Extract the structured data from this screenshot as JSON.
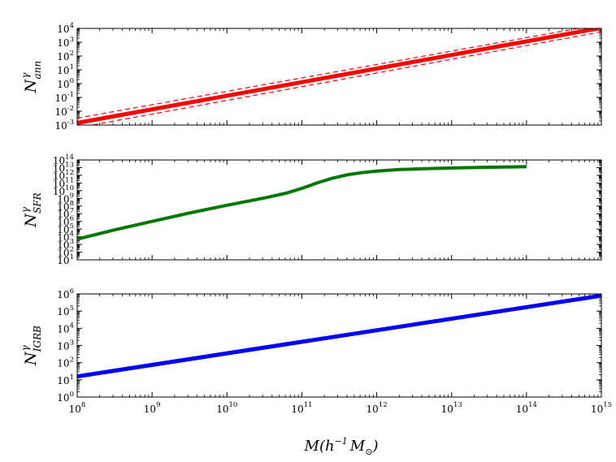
{
  "chart_data": [
    {
      "type": "line",
      "ylabel": {
        "base": "N",
        "sup": "γ",
        "sub": "ann"
      },
      "xscale": "log",
      "yscale": "log",
      "xlim_exp": [
        8,
        15
      ],
      "ylim_exp": [
        -3,
        4
      ],
      "x_tick_exponents": [
        8,
        9,
        10,
        11,
        12,
        13,
        14,
        15
      ],
      "y_tick_exponents": [
        -3,
        -2,
        -1,
        0,
        1,
        2,
        3,
        4
      ],
      "series": [
        {
          "style": "solid",
          "color": "#ff0000",
          "width": 5,
          "x_exp": [
            8,
            15
          ],
          "y_exp": [
            -2.85,
            4.05
          ]
        },
        {
          "style": "dashed",
          "color": "#ff0000",
          "width": 1.2,
          "x_exp": [
            8,
            15
          ],
          "y_exp": [
            -2.5,
            4.3
          ]
        },
        {
          "style": "dashed",
          "color": "#ff0000",
          "width": 1.2,
          "x_exp": [
            8,
            15
          ],
          "y_exp": [
            -3.2,
            3.75
          ]
        }
      ]
    },
    {
      "type": "line",
      "ylabel": {
        "base": "N",
        "sup": "γ",
        "sub": "SFR"
      },
      "xscale": "log",
      "yscale": "log",
      "xlim_exp": [
        8,
        15
      ],
      "ylim_exp": [
        1,
        14
      ],
      "x_tick_exponents": [
        8,
        9,
        10,
        11,
        12,
        13,
        14,
        15
      ],
      "y_tick_exponents": [
        1,
        2,
        3,
        4,
        5,
        6,
        7,
        8,
        9,
        10,
        11,
        12,
        13,
        14
      ],
      "series": [
        {
          "style": "solid",
          "color": "#007700",
          "width": 4,
          "x_exp": [
            8,
            8.5,
            9,
            9.5,
            10,
            10.5,
            10.8,
            11,
            11.2,
            11.4,
            11.6,
            11.8,
            12,
            12.3,
            12.6,
            13,
            13.5,
            14
          ],
          "y_exp": [
            3.7,
            4.9,
            6.0,
            7.1,
            8.1,
            9.05,
            9.7,
            10.3,
            11.0,
            11.6,
            12.05,
            12.35,
            12.55,
            12.75,
            12.85,
            12.95,
            13.05,
            13.12
          ]
        }
      ]
    },
    {
      "type": "line",
      "ylabel": {
        "base": "N",
        "sup": "γ",
        "sub": "IGRB"
      },
      "xscale": "log",
      "yscale": "log",
      "xlim_exp": [
        8,
        15
      ],
      "ylim_exp": [
        0,
        6
      ],
      "x_tick_exponents": [
        8,
        9,
        10,
        11,
        12,
        13,
        14,
        15
      ],
      "y_tick_exponents": [
        0,
        1,
        2,
        3,
        4,
        5,
        6
      ],
      "series": [
        {
          "style": "solid",
          "color": "#0000ff",
          "width": 5,
          "x_exp": [
            8,
            15
          ],
          "y_exp": [
            1.2,
            5.9
          ]
        }
      ]
    }
  ],
  "xlabel": {
    "base": "M(h",
    "sup": "−1",
    "mid": "M",
    "sub": "⊙",
    "end": ")"
  },
  "tick_base": "10"
}
